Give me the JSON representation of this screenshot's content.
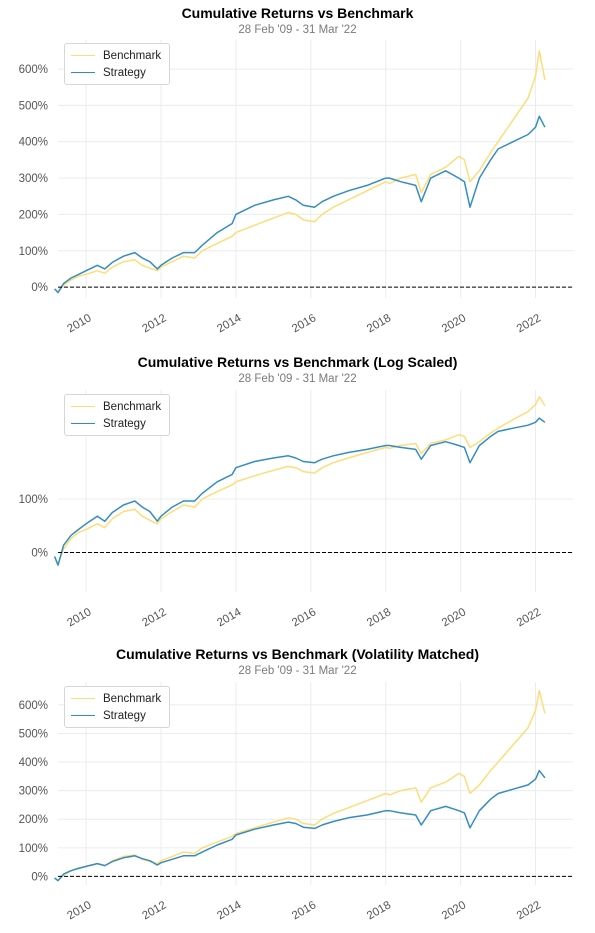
{
  "chart_data": [
    {
      "type": "line",
      "title": "Cumulative Returns vs Benchmark",
      "subtitle": "28 Feb '09 - 31 Mar '22",
      "scale": "linear",
      "ylim": [
        -30,
        680
      ],
      "yticks": [
        0,
        100,
        200,
        300,
        400,
        500,
        600
      ],
      "ytick_labels": [
        "0%",
        "100%",
        "200%",
        "300%",
        "400%",
        "500%",
        "600%"
      ],
      "xlim": [
        2009.25,
        2023.0
      ],
      "xticks": [
        2010,
        2012,
        2014,
        2016,
        2018,
        2020,
        2022
      ],
      "xtick_labels": [
        "2010",
        "2012",
        "2014",
        "2016",
        "2018",
        "2020",
        "2022"
      ],
      "grid": true,
      "zero_line": true,
      "legend": "top-left",
      "series": [
        {
          "name": "Benchmark",
          "color": "#fedd78",
          "x": [
            2009.16,
            2009.25,
            2009.4,
            2009.6,
            2009.8,
            2010.0,
            2010.3,
            2010.5,
            2010.7,
            2011.0,
            2011.3,
            2011.5,
            2011.7,
            2011.9,
            2012.0,
            2012.3,
            2012.6,
            2012.9,
            2013.1,
            2013.5,
            2013.9,
            2014.0,
            2014.5,
            2015.0,
            2015.4,
            2015.6,
            2015.8,
            2016.1,
            2016.3,
            2016.6,
            2017.0,
            2017.5,
            2018.0,
            2018.1,
            2018.4,
            2018.8,
            2018.95,
            2019.2,
            2019.6,
            2019.95,
            2020.1,
            2020.25,
            2020.5,
            2020.8,
            2021.0,
            2021.4,
            2021.8,
            2022.0,
            2022.1,
            2022.25
          ],
          "values": [
            -5,
            -15,
            5,
            20,
            30,
            35,
            45,
            38,
            55,
            70,
            75,
            60,
            52,
            45,
            55,
            70,
            85,
            80,
            100,
            120,
            140,
            150,
            170,
            190,
            205,
            200,
            185,
            180,
            200,
            220,
            240,
            265,
            290,
            285,
            300,
            310,
            260,
            310,
            330,
            360,
            350,
            290,
            320,
            370,
            400,
            460,
            520,
            580,
            650,
            570
          ]
        },
        {
          "name": "Strategy",
          "color": "#348dc1",
          "x": [
            2009.16,
            2009.25,
            2009.4,
            2009.6,
            2009.8,
            2010.0,
            2010.3,
            2010.5,
            2010.7,
            2011.0,
            2011.3,
            2011.5,
            2011.7,
            2011.9,
            2012.0,
            2012.3,
            2012.6,
            2012.9,
            2013.1,
            2013.5,
            2013.9,
            2014.0,
            2014.5,
            2015.0,
            2015.4,
            2015.6,
            2015.8,
            2016.1,
            2016.3,
            2016.6,
            2017.0,
            2017.5,
            2018.0,
            2018.1,
            2018.4,
            2018.8,
            2018.95,
            2019.2,
            2019.6,
            2019.95,
            2020.1,
            2020.25,
            2020.5,
            2020.8,
            2021.0,
            2021.4,
            2021.8,
            2022.0,
            2022.1,
            2022.25
          ],
          "values": [
            -5,
            -15,
            10,
            25,
            35,
            45,
            60,
            50,
            68,
            85,
            95,
            80,
            70,
            50,
            60,
            80,
            95,
            95,
            115,
            150,
            175,
            200,
            225,
            240,
            250,
            240,
            225,
            220,
            235,
            250,
            265,
            280,
            300,
            300,
            290,
            280,
            235,
            300,
            320,
            300,
            290,
            220,
            300,
            350,
            380,
            400,
            420,
            440,
            470,
            440
          ]
        }
      ]
    },
    {
      "type": "line",
      "title": "Cumulative Returns vs Benchmark (Log Scaled)",
      "subtitle": "28 Feb '09 - 31 Mar '22",
      "scale": "log",
      "ylim": [
        -40,
        720
      ],
      "yticks": [
        0,
        100
      ],
      "ytick_labels": [
        "0%",
        "100%"
      ],
      "xlim": [
        2009.25,
        2023.0
      ],
      "xticks": [
        2010,
        2012,
        2014,
        2016,
        2018,
        2020,
        2022
      ],
      "xtick_labels": [
        "2010",
        "2012",
        "2014",
        "2016",
        "2018",
        "2020",
        "2022"
      ],
      "grid": true,
      "zero_line": true,
      "legend": "top-left",
      "series": [
        {
          "name": "Benchmark",
          "color": "#fedd78",
          "x": [
            2009.16,
            2009.25,
            2009.4,
            2009.6,
            2009.8,
            2010.0,
            2010.3,
            2010.5,
            2010.7,
            2011.0,
            2011.3,
            2011.5,
            2011.7,
            2011.9,
            2012.0,
            2012.3,
            2012.6,
            2012.9,
            2013.1,
            2013.5,
            2013.9,
            2014.0,
            2014.5,
            2015.0,
            2015.4,
            2015.6,
            2015.8,
            2016.1,
            2016.3,
            2016.6,
            2017.0,
            2017.5,
            2018.0,
            2018.1,
            2018.4,
            2018.8,
            2018.95,
            2019.2,
            2019.6,
            2019.95,
            2020.1,
            2020.25,
            2020.5,
            2020.8,
            2021.0,
            2021.4,
            2021.8,
            2022.0,
            2022.1,
            2022.25
          ],
          "values": [
            -5,
            -15,
            5,
            20,
            30,
            35,
            45,
            38,
            55,
            70,
            75,
            60,
            52,
            45,
            55,
            70,
            85,
            80,
            100,
            120,
            140,
            150,
            170,
            190,
            205,
            200,
            185,
            180,
            200,
            220,
            240,
            265,
            290,
            285,
            300,
            310,
            260,
            310,
            330,
            360,
            350,
            290,
            320,
            370,
            400,
            460,
            520,
            580,
            650,
            570
          ]
        },
        {
          "name": "Strategy",
          "color": "#348dc1",
          "x": [
            2009.16,
            2009.25,
            2009.4,
            2009.6,
            2009.8,
            2010.0,
            2010.3,
            2010.5,
            2010.7,
            2011.0,
            2011.3,
            2011.5,
            2011.7,
            2011.9,
            2012.0,
            2012.3,
            2012.6,
            2012.9,
            2013.1,
            2013.5,
            2013.9,
            2014.0,
            2014.5,
            2015.0,
            2015.4,
            2015.6,
            2015.8,
            2016.1,
            2016.3,
            2016.6,
            2017.0,
            2017.5,
            2018.0,
            2018.1,
            2018.4,
            2018.8,
            2018.95,
            2019.2,
            2019.6,
            2019.95,
            2020.1,
            2020.25,
            2020.5,
            2020.8,
            2021.0,
            2021.4,
            2021.8,
            2022.0,
            2022.1,
            2022.25
          ],
          "values": [
            -5,
            -15,
            10,
            25,
            35,
            45,
            60,
            50,
            68,
            85,
            95,
            80,
            70,
            50,
            60,
            80,
            95,
            95,
            115,
            150,
            175,
            200,
            225,
            240,
            250,
            240,
            225,
            220,
            235,
            250,
            265,
            280,
            300,
            300,
            290,
            280,
            235,
            300,
            320,
            300,
            290,
            220,
            300,
            350,
            380,
            400,
            420,
            440,
            470,
            440
          ]
        }
      ]
    },
    {
      "type": "line",
      "title": "Cumulative Returns vs Benchmark (Volatility Matched)",
      "subtitle": "28 Feb '09 - 31 Mar '22",
      "scale": "linear",
      "ylim": [
        -30,
        680
      ],
      "yticks": [
        0,
        100,
        200,
        300,
        400,
        500,
        600
      ],
      "ytick_labels": [
        "0%",
        "100%",
        "200%",
        "300%",
        "400%",
        "500%",
        "600%"
      ],
      "xlim": [
        2009.25,
        2023.0
      ],
      "xticks": [
        2010,
        2012,
        2014,
        2016,
        2018,
        2020,
        2022
      ],
      "xtick_labels": [
        "2010",
        "2012",
        "2014",
        "2016",
        "2018",
        "2020",
        "2022"
      ],
      "grid": true,
      "zero_line": true,
      "legend": "top-left",
      "series": [
        {
          "name": "Benchmark",
          "color": "#fedd78",
          "x": [
            2009.16,
            2009.25,
            2009.4,
            2009.6,
            2009.8,
            2010.0,
            2010.3,
            2010.5,
            2010.7,
            2011.0,
            2011.3,
            2011.5,
            2011.7,
            2011.9,
            2012.0,
            2012.3,
            2012.6,
            2012.9,
            2013.1,
            2013.5,
            2013.9,
            2014.0,
            2014.5,
            2015.0,
            2015.4,
            2015.6,
            2015.8,
            2016.1,
            2016.3,
            2016.6,
            2017.0,
            2017.5,
            2018.0,
            2018.1,
            2018.4,
            2018.8,
            2018.95,
            2019.2,
            2019.6,
            2019.95,
            2020.1,
            2020.25,
            2020.5,
            2020.8,
            2021.0,
            2021.4,
            2021.8,
            2022.0,
            2022.1,
            2022.25
          ],
          "values": [
            -5,
            -15,
            5,
            20,
            30,
            35,
            45,
            38,
            55,
            70,
            75,
            60,
            52,
            45,
            55,
            70,
            85,
            80,
            100,
            120,
            140,
            150,
            170,
            190,
            205,
            200,
            185,
            180,
            200,
            220,
            240,
            265,
            290,
            285,
            300,
            310,
            260,
            310,
            330,
            360,
            350,
            290,
            320,
            370,
            400,
            460,
            520,
            580,
            650,
            570
          ]
        },
        {
          "name": "Strategy",
          "color": "#348dc1",
          "x": [
            2009.16,
            2009.25,
            2009.4,
            2009.6,
            2009.8,
            2010.0,
            2010.3,
            2010.5,
            2010.7,
            2011.0,
            2011.3,
            2011.5,
            2011.7,
            2011.9,
            2012.0,
            2012.3,
            2012.6,
            2012.9,
            2013.1,
            2013.5,
            2013.9,
            2014.0,
            2014.5,
            2015.0,
            2015.4,
            2015.6,
            2015.8,
            2016.1,
            2016.3,
            2016.6,
            2017.0,
            2017.5,
            2018.0,
            2018.1,
            2018.4,
            2018.8,
            2018.95,
            2019.2,
            2019.6,
            2019.95,
            2020.1,
            2020.25,
            2020.5,
            2020.8,
            2021.0,
            2021.4,
            2021.8,
            2022.0,
            2022.1,
            2022.25
          ],
          "values": [
            -5,
            -15,
            8,
            20,
            28,
            35,
            45,
            38,
            52,
            65,
            72,
            62,
            55,
            40,
            48,
            60,
            72,
            72,
            85,
            110,
            130,
            145,
            165,
            180,
            190,
            185,
            172,
            168,
            180,
            192,
            205,
            215,
            230,
            230,
            222,
            215,
            180,
            230,
            245,
            230,
            222,
            170,
            230,
            270,
            290,
            305,
            320,
            340,
            370,
            345
          ]
        }
      ]
    }
  ]
}
